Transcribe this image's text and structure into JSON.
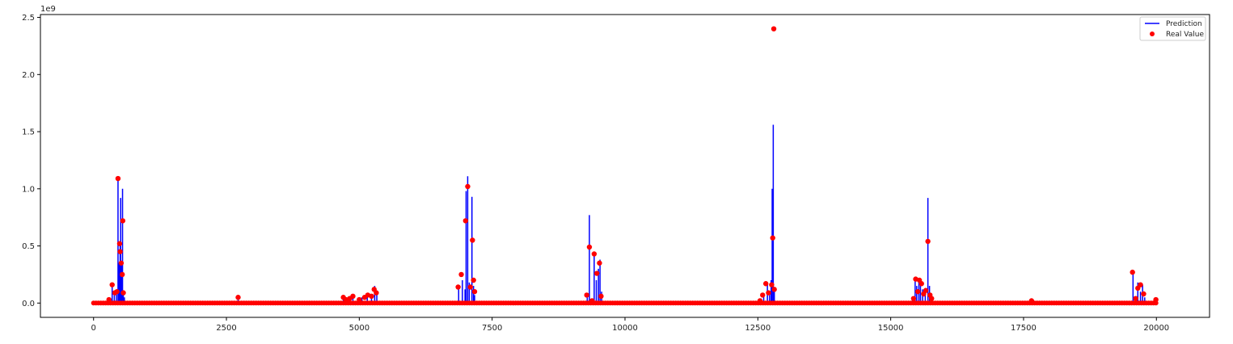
{
  "chart_data": {
    "type": "line",
    "title": "",
    "xlabel": "",
    "ylabel": "",
    "y_scale_label": "1e9",
    "xlim": [
      -1000,
      21000
    ],
    "ylim": [
      -0.125,
      2.525
    ],
    "x_ticks": [
      0,
      2500,
      5000,
      7500,
      10000,
      12500,
      15000,
      17500,
      20000
    ],
    "x_tick_labels": [
      "0",
      "2500",
      "5000",
      "7500",
      "10000",
      "12500",
      "15000",
      "17500",
      "20000"
    ],
    "y_ticks": [
      0.0,
      0.5,
      1.0,
      1.5,
      2.0,
      2.5
    ],
    "y_tick_labels": [
      "0.0",
      "0.5",
      "1.0",
      "1.5",
      "2.0",
      "2.5"
    ],
    "grid": false,
    "legend_position": "top-right",
    "colors": {
      "prediction": "#0000ff",
      "real_value": "#ff0000",
      "axes": "#000000"
    },
    "baseline": {
      "x_start": 0,
      "x_end": 20000,
      "value": 0
    },
    "series": [
      {
        "name": "Prediction",
        "style": "line",
        "spikes": [
          [
            290,
            0.03
          ],
          [
            350,
            0.17
          ],
          [
            390,
            0.1
          ],
          [
            430,
            0.08
          ],
          [
            460,
            1.09
          ],
          [
            480,
            0.35
          ],
          [
            500,
            0.5
          ],
          [
            510,
            0.92
          ],
          [
            530,
            0.35
          ],
          [
            545,
            1.0
          ],
          [
            560,
            0.1
          ],
          [
            580,
            0.05
          ],
          [
            2720,
            0.04
          ],
          [
            4700,
            0.05
          ],
          [
            4820,
            0.05
          ],
          [
            4880,
            0.06
          ],
          [
            5050,
            0.05
          ],
          [
            5150,
            0.07
          ],
          [
            5230,
            0.07
          ],
          [
            5290,
            0.15
          ],
          [
            5330,
            0.08
          ],
          [
            6870,
            0.15
          ],
          [
            6940,
            0.2
          ],
          [
            6990,
            0.12
          ],
          [
            7010,
            0.98
          ],
          [
            7040,
            1.11
          ],
          [
            7070,
            0.18
          ],
          [
            7120,
            0.93
          ],
          [
            7150,
            0.15
          ],
          [
            7170,
            0.07
          ],
          [
            9290,
            0.07
          ],
          [
            9330,
            0.77
          ],
          [
            9420,
            0.42
          ],
          [
            9460,
            0.2
          ],
          [
            9500,
            0.3
          ],
          [
            9530,
            0.38
          ],
          [
            9560,
            0.1
          ],
          [
            12560,
            0.04
          ],
          [
            12610,
            0.08
          ],
          [
            12680,
            0.18
          ],
          [
            12720,
            0.08
          ],
          [
            12750,
            0.2
          ],
          [
            12770,
            1.0
          ],
          [
            12790,
            1.56
          ],
          [
            12810,
            0.12
          ],
          [
            15410,
            0.05
          ],
          [
            15460,
            0.2
          ],
          [
            15490,
            0.15
          ],
          [
            15530,
            0.18
          ],
          [
            15560,
            0.2
          ],
          [
            15600,
            0.12
          ],
          [
            15650,
            0.1
          ],
          [
            15700,
            0.92
          ],
          [
            15730,
            0.15
          ],
          [
            15760,
            0.05
          ],
          [
            17640,
            0.02
          ],
          [
            19560,
            0.26
          ],
          [
            19600,
            0.05
          ],
          [
            19650,
            0.18
          ],
          [
            19700,
            0.1
          ],
          [
            19740,
            0.16
          ],
          [
            19780,
            0.05
          ],
          [
            19990,
            0.03
          ]
        ]
      },
      {
        "name": "Real Value",
        "style": "scatter",
        "points": [
          [
            290,
            0.03
          ],
          [
            350,
            0.16
          ],
          [
            400,
            0.09
          ],
          [
            440,
            0.1
          ],
          [
            460,
            1.09
          ],
          [
            490,
            0.52
          ],
          [
            500,
            0.45
          ],
          [
            520,
            0.35
          ],
          [
            540,
            0.25
          ],
          [
            550,
            0.72
          ],
          [
            560,
            0.09
          ],
          [
            2720,
            0.05
          ],
          [
            4700,
            0.05
          ],
          [
            4750,
            0.03
          ],
          [
            4820,
            0.04
          ],
          [
            4880,
            0.06
          ],
          [
            5000,
            0.03
          ],
          [
            5100,
            0.05
          ],
          [
            5160,
            0.07
          ],
          [
            5230,
            0.06
          ],
          [
            5280,
            0.12
          ],
          [
            5320,
            0.09
          ],
          [
            6860,
            0.14
          ],
          [
            6920,
            0.25
          ],
          [
            7000,
            0.72
          ],
          [
            7040,
            1.02
          ],
          [
            7090,
            0.14
          ],
          [
            7130,
            0.55
          ],
          [
            7150,
            0.2
          ],
          [
            7170,
            0.1
          ],
          [
            9280,
            0.07
          ],
          [
            9330,
            0.49
          ],
          [
            9380,
            0.02
          ],
          [
            9420,
            0.43
          ],
          [
            9470,
            0.26
          ],
          [
            9520,
            0.35
          ],
          [
            9550,
            0.06
          ],
          [
            12540,
            0.02
          ],
          [
            12590,
            0.07
          ],
          [
            12650,
            0.17
          ],
          [
            12700,
            0.09
          ],
          [
            12760,
            0.16
          ],
          [
            12780,
            0.57
          ],
          [
            12800,
            2.4
          ],
          [
            12810,
            0.12
          ],
          [
            15430,
            0.04
          ],
          [
            15470,
            0.21
          ],
          [
            15510,
            0.1
          ],
          [
            15540,
            0.2
          ],
          [
            15580,
            0.17
          ],
          [
            15620,
            0.08
          ],
          [
            15660,
            0.11
          ],
          [
            15700,
            0.54
          ],
          [
            15740,
            0.07
          ],
          [
            15770,
            0.04
          ],
          [
            17650,
            0.02
          ],
          [
            19550,
            0.27
          ],
          [
            19610,
            0.04
          ],
          [
            19650,
            0.13
          ],
          [
            19700,
            0.16
          ],
          [
            19760,
            0.08
          ],
          [
            19990,
            0.03
          ]
        ]
      }
    ]
  }
}
